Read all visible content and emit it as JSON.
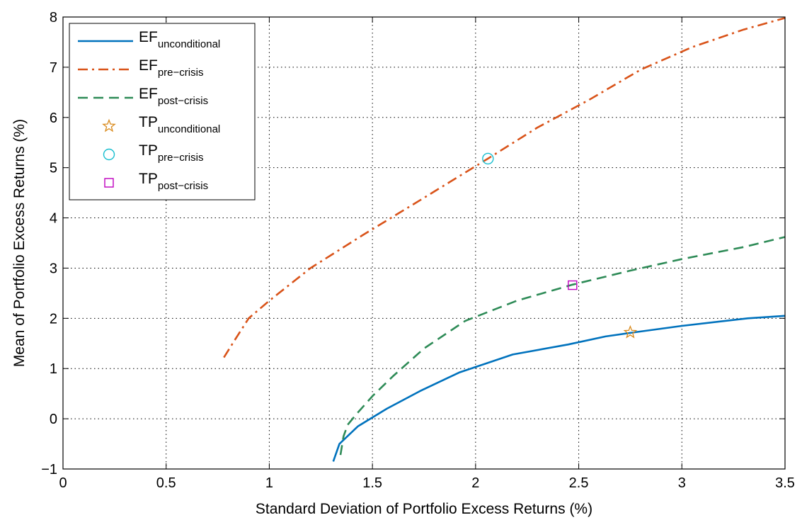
{
  "chart_data": {
    "type": "line",
    "xlabel": "Standard Deviation of Portfolio Excess Returns (%)",
    "ylabel": "Mean of Portfolio Excess Returns (%)",
    "xlim": [
      0,
      3.5
    ],
    "ylim": [
      -1,
      8
    ],
    "x_ticks": [
      "0",
      "0.5",
      "1",
      "1.5",
      "2",
      "2.5",
      "3",
      "3.5"
    ],
    "y_ticks": [
      "−1",
      "0",
      "1",
      "2",
      "3",
      "4",
      "5",
      "6",
      "7",
      "8"
    ],
    "grid": "dotted",
    "legend_position": "top-left",
    "series": [
      {
        "key": "ef_unconditional",
        "label_main": "EF",
        "label_sub": "unconditional",
        "style": "solid",
        "color": "#0072BD",
        "points": [
          [
            1.31,
            -0.85
          ],
          [
            1.34,
            -0.5
          ],
          [
            1.43,
            -0.15
          ],
          [
            1.57,
            0.2
          ],
          [
            1.73,
            0.55
          ],
          [
            1.92,
            0.92
          ],
          [
            2.18,
            1.28
          ],
          [
            2.45,
            1.48
          ],
          [
            2.63,
            1.64
          ],
          [
            2.75,
            1.71
          ],
          [
            3.0,
            1.85
          ],
          [
            3.32,
            2.0
          ],
          [
            3.5,
            2.05
          ]
        ]
      },
      {
        "key": "ef_pre_crisis",
        "label_main": "EF",
        "label_sub": "pre−crisis",
        "style": "dashdot",
        "color": "#D95319",
        "points": [
          [
            0.78,
            1.22
          ],
          [
            0.83,
            1.55
          ],
          [
            0.9,
            2.0
          ],
          [
            1.0,
            2.35
          ],
          [
            1.2,
            3.0
          ],
          [
            1.45,
            3.65
          ],
          [
            1.75,
            4.4
          ],
          [
            2.06,
            5.18
          ],
          [
            2.3,
            5.8
          ],
          [
            2.55,
            6.35
          ],
          [
            2.8,
            6.95
          ],
          [
            3.05,
            7.4
          ],
          [
            3.3,
            7.75
          ],
          [
            3.5,
            7.98
          ]
        ]
      },
      {
        "key": "ef_post_crisis",
        "label_main": "EF",
        "label_sub": "post−crisis",
        "style": "dashed",
        "color": "#2E8B57",
        "points": [
          [
            1.345,
            -0.72
          ],
          [
            1.36,
            -0.35
          ],
          [
            1.38,
            -0.12
          ],
          [
            1.42,
            0.08
          ],
          [
            1.5,
            0.45
          ],
          [
            1.6,
            0.85
          ],
          [
            1.75,
            1.4
          ],
          [
            1.95,
            1.95
          ],
          [
            2.2,
            2.35
          ],
          [
            2.47,
            2.67
          ],
          [
            2.75,
            2.95
          ],
          [
            3.0,
            3.18
          ],
          [
            3.3,
            3.42
          ],
          [
            3.5,
            3.62
          ]
        ]
      }
    ],
    "markers": [
      {
        "key": "tp_unconditional",
        "label_main": "TP",
        "label_sub": "unconditional",
        "shape": "star",
        "color": "#D98A1C",
        "x": 2.75,
        "y": 1.72
      },
      {
        "key": "tp_pre_crisis",
        "label_main": "TP",
        "label_sub": "pre−crisis",
        "shape": "circle",
        "color": "#17BECF",
        "x": 2.06,
        "y": 5.18
      },
      {
        "key": "tp_post_crisis",
        "label_main": "TP",
        "label_sub": "post−crisis",
        "shape": "square",
        "color": "#BF00BF",
        "x": 2.47,
        "y": 2.66
      }
    ]
  }
}
